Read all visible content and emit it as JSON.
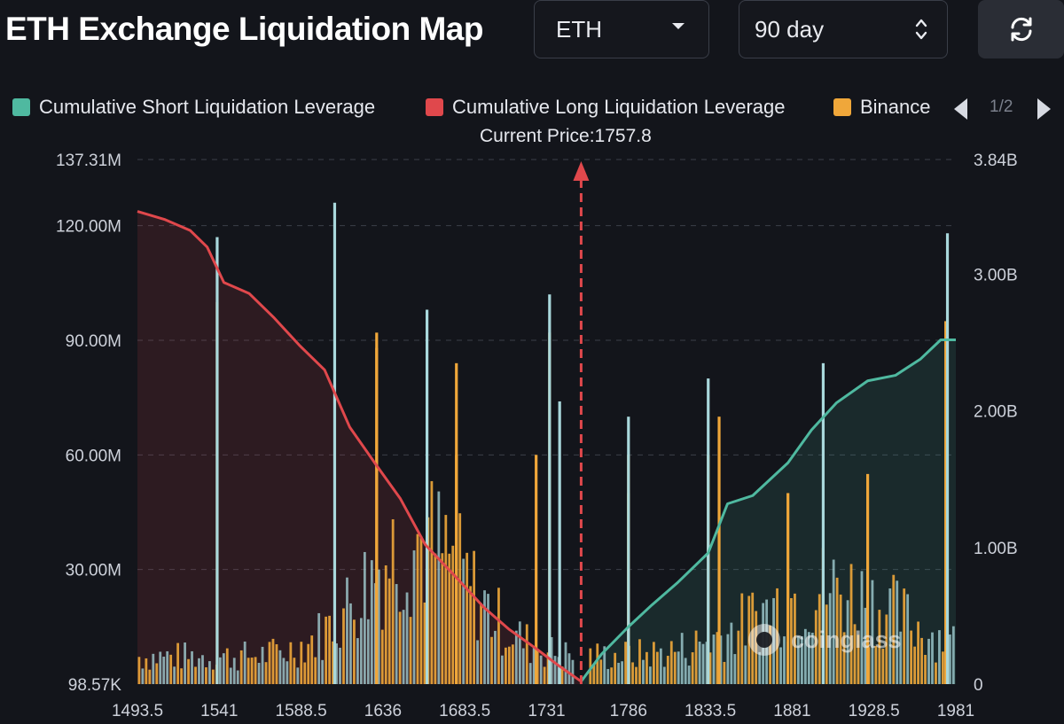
{
  "header": {
    "title": "ETH Exchange Liquidation Map",
    "coin_select": "ETH",
    "range_select": "90 day"
  },
  "legend": {
    "items": [
      {
        "label": "Cumulative Short Liquidation Leverage",
        "color": "#4fb9a0"
      },
      {
        "label": "Cumulative Long Liquidation Leverage",
        "color": "#e0484c"
      },
      {
        "label": "Binance",
        "color": "#f0a73a"
      }
    ],
    "page": "1/2"
  },
  "current_price_label": "Current Price:1757.8",
  "watermark": "coinglass",
  "chart_data": {
    "type": "bar",
    "current_price": 1757.8,
    "x_ticks": [
      "1493.5",
      "1541",
      "1588.5",
      "1636",
      "1683.5",
      "1731",
      "1786",
      "1833.5",
      "1881",
      "1928.5",
      "1981"
    ],
    "xlim": [
      1493.5,
      1981
    ],
    "left_axis": {
      "ticks": [
        "137.31M",
        "120.00M",
        "90.00M",
        "60.00M",
        "30.00M",
        "98.57K"
      ],
      "tick_values": [
        137.31,
        120,
        90,
        60,
        30,
        0
      ],
      "ylim": [
        0,
        137.31
      ],
      "unit": "M"
    },
    "right_axis": {
      "ticks": [
        "3.84B",
        "3.00B",
        "2.00B",
        "1.00B",
        "0"
      ],
      "tick_values": [
        3.84,
        3.0,
        2.0,
        1.0,
        0
      ],
      "ylim": [
        0,
        3.84
      ],
      "unit": "B"
    },
    "series": [
      {
        "name": "Cumulative Long Liquidation Leverage",
        "axis": "right",
        "color": "#e0484c",
        "x": [
          1493.5,
          1510,
          1525,
          1535,
          1545,
          1560,
          1575,
          1590,
          1605,
          1620,
          1636,
          1650,
          1665,
          1683.5,
          1700,
          1715,
          1731,
          1745,
          1757.8
        ],
        "y": [
          3.46,
          3.4,
          3.32,
          3.2,
          2.94,
          2.86,
          2.68,
          2.48,
          2.3,
          1.88,
          1.6,
          1.36,
          1.02,
          0.78,
          0.56,
          0.4,
          0.26,
          0.13,
          0.02
        ]
      },
      {
        "name": "Cumulative Short Liquidation Leverage",
        "axis": "right",
        "color": "#4fb9a0",
        "x": [
          1757.8,
          1770,
          1786,
          1800,
          1815,
          1833.5,
          1845,
          1860,
          1881,
          1895,
          1910,
          1928.5,
          1945,
          1960,
          1972,
          1981
        ],
        "y": [
          0.02,
          0.22,
          0.42,
          0.58,
          0.74,
          0.96,
          1.32,
          1.38,
          1.62,
          1.86,
          2.06,
          2.22,
          2.26,
          2.38,
          2.52,
          2.52
        ]
      },
      {
        "name": "Binance",
        "axis": "left",
        "color": "#f0a73a",
        "x": [
          1541,
          1636,
          1636,
          1683.5,
          1683.5,
          1731,
          1739,
          1786,
          1786,
          1833.5,
          1840,
          1881,
          1928.5,
          1975
        ],
        "y": [
          100,
          92,
          88,
          84,
          60,
          60,
          92,
          60,
          50,
          60,
          70,
          50,
          55,
          95
        ]
      },
      {
        "name": "",
        "axis": "left",
        "color": "#a9d8dc",
        "x": [
          1541,
          1611,
          1666,
          1739,
          1745,
          1786,
          1833.5,
          1902,
          1976
        ],
        "y": [
          117,
          126,
          98,
          102,
          74,
          70,
          80,
          84,
          118
        ]
      }
    ],
    "grid": true,
    "legend_position": "top"
  }
}
